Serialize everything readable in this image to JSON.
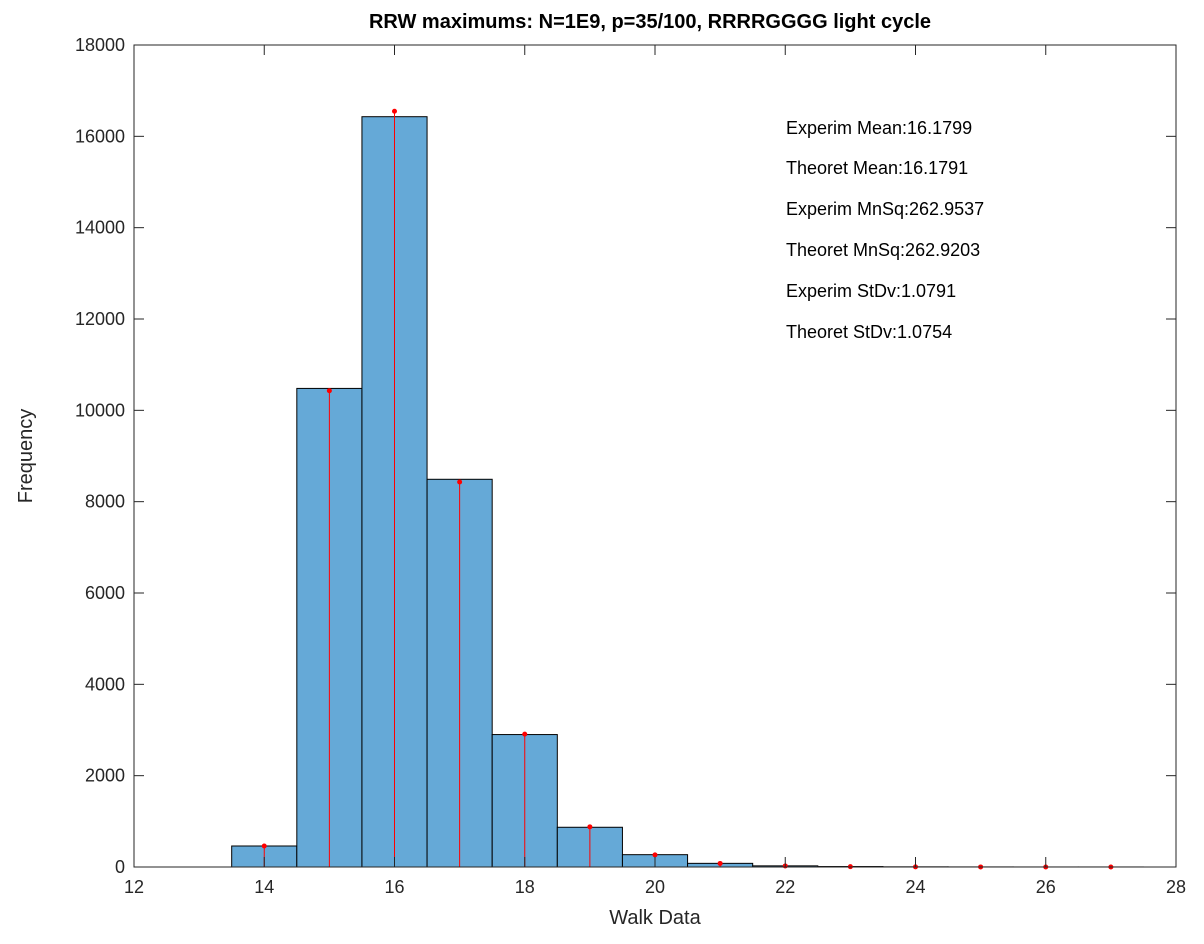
{
  "chart_data": {
    "type": "bar",
    "title": "RRW maximums: N=1E9, p=35/100, RRRRGGGG light cycle",
    "xlabel": "Walk Data",
    "ylabel": "Frequency",
    "xlim": [
      12,
      28
    ],
    "ylim": [
      0,
      18000
    ],
    "xticks": [
      12,
      14,
      16,
      18,
      20,
      22,
      24,
      26,
      28
    ],
    "yticks": [
      0,
      2000,
      4000,
      6000,
      8000,
      10000,
      12000,
      14000,
      16000,
      18000
    ],
    "grid": false,
    "bar_color": "#65a9d7",
    "bar_edge_color": "#000000",
    "stem_color": "#ff0000",
    "bins": [
      {
        "left": 13.5,
        "right": 14.5,
        "value": 460
      },
      {
        "left": 14.5,
        "right": 15.5,
        "value": 10480
      },
      {
        "left": 15.5,
        "right": 16.5,
        "value": 16430
      },
      {
        "left": 16.5,
        "right": 17.5,
        "value": 8490
      },
      {
        "left": 17.5,
        "right": 18.5,
        "value": 2900
      },
      {
        "left": 18.5,
        "right": 19.5,
        "value": 870
      },
      {
        "left": 19.5,
        "right": 20.5,
        "value": 270
      },
      {
        "left": 20.5,
        "right": 21.5,
        "value": 80
      },
      {
        "left": 21.5,
        "right": 22.5,
        "value": 25
      },
      {
        "left": 22.5,
        "right": 23.5,
        "value": 10
      },
      {
        "left": 23.5,
        "right": 24.5,
        "value": 4
      },
      {
        "left": 24.5,
        "right": 25.5,
        "value": 2
      },
      {
        "left": 25.5,
        "right": 26.5,
        "value": 1
      },
      {
        "left": 26.5,
        "right": 27.5,
        "value": 1
      }
    ],
    "theoretical": [
      {
        "x": 14,
        "y": 460
      },
      {
        "x": 15,
        "y": 10430
      },
      {
        "x": 16,
        "y": 16550
      },
      {
        "x": 17,
        "y": 8430
      },
      {
        "x": 18,
        "y": 2910
      },
      {
        "x": 19,
        "y": 880
      },
      {
        "x": 20,
        "y": 265
      },
      {
        "x": 21,
        "y": 78
      },
      {
        "x": 22,
        "y": 23
      },
      {
        "x": 23,
        "y": 7
      },
      {
        "x": 24,
        "y": 2
      },
      {
        "x": 25,
        "y": 1
      },
      {
        "x": 26,
        "y": 0
      },
      {
        "x": 27,
        "y": 0
      }
    ]
  },
  "stats": [
    "Experim Mean:16.1799",
    "Theoret Mean:16.1791",
    "Experim MnSq:262.9537",
    "Theoret MnSq:262.9203",
    "Experim StDv:1.0791",
    "Theoret StDv:1.0754"
  ]
}
